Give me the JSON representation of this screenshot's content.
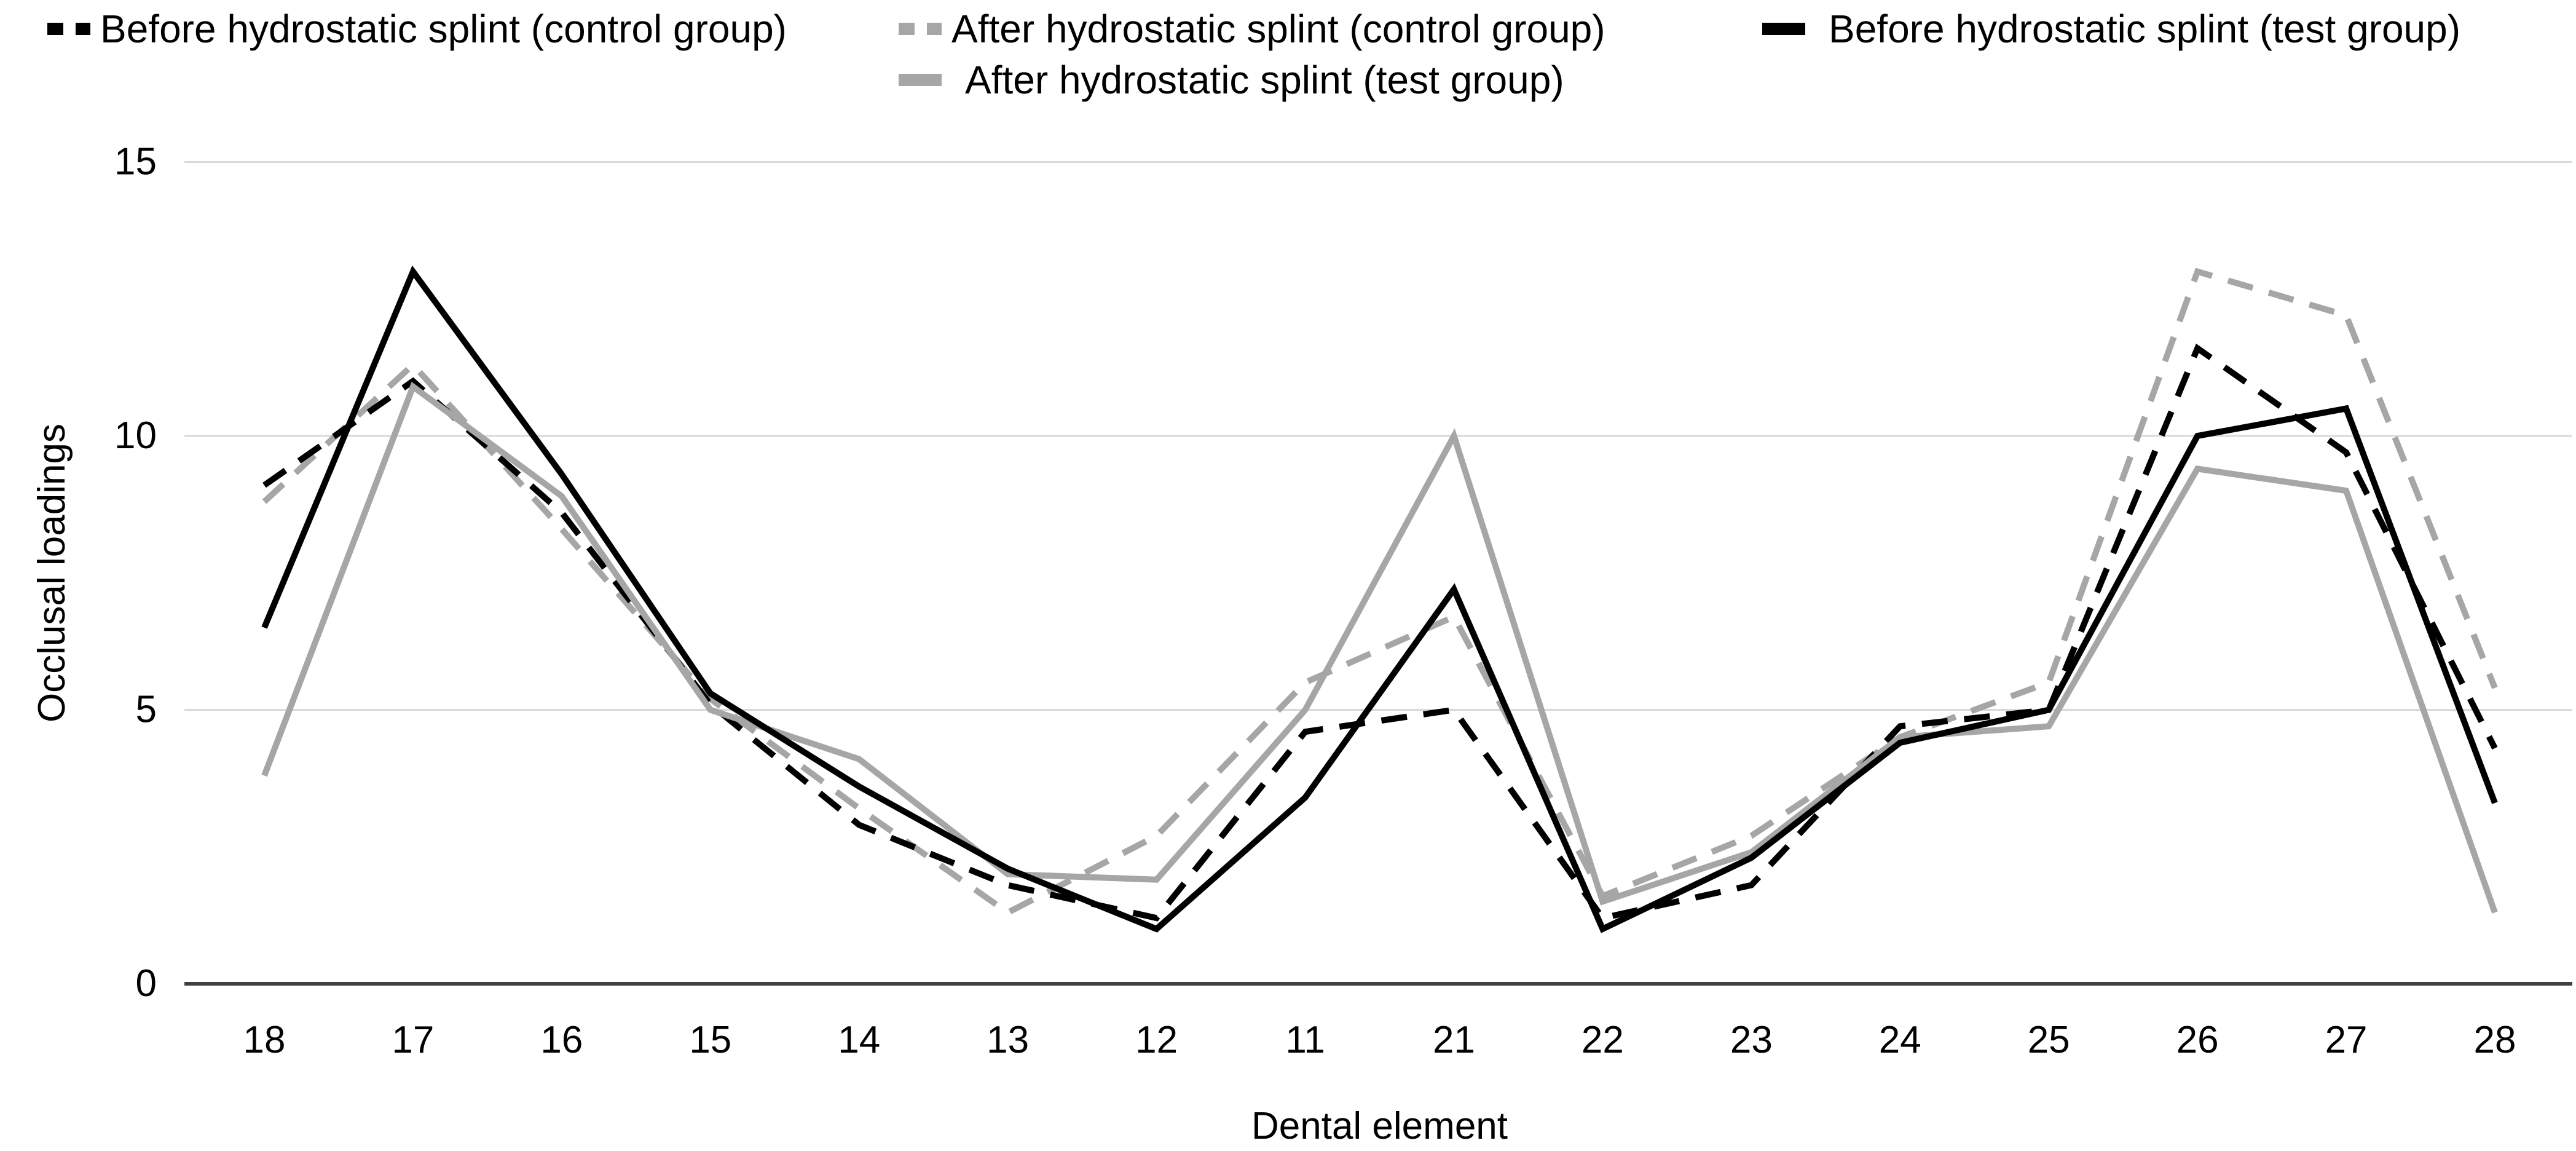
{
  "chart_data": {
    "type": "line",
    "title": "",
    "xlabel": "Dental element",
    "ylabel": "Occlusal loadings",
    "ylim": [
      0,
      15
    ],
    "yticks": [
      0,
      5,
      10,
      15
    ],
    "grid": true,
    "legend_position": "top",
    "categories": [
      "18",
      "17",
      "16",
      "15",
      "14",
      "13",
      "12",
      "11",
      "21",
      "22",
      "23",
      "24",
      "25",
      "26",
      "27",
      "28"
    ],
    "series": [
      {
        "name": "Before hydrostatic splint (control group)",
        "style": "dashed",
        "color": "#000000",
        "values": [
          9.1,
          11.0,
          8.6,
          5.1,
          2.9,
          1.8,
          1.2,
          4.6,
          5.0,
          1.2,
          1.8,
          4.7,
          5.0,
          11.6,
          9.7,
          4.3
        ]
      },
      {
        "name": "After hydrostatic splint (control group)",
        "style": "dashed",
        "color": "#a6a6a6",
        "values": [
          8.8,
          11.3,
          8.3,
          5.2,
          3.2,
          1.3,
          2.7,
          5.5,
          6.7,
          1.6,
          2.7,
          4.5,
          5.5,
          13.0,
          12.2,
          5.4
        ]
      },
      {
        "name": "After hydrostatic splint (test group)",
        "style": "solid",
        "color": "#a6a6a6",
        "values": [
          3.8,
          10.9,
          8.9,
          5.0,
          4.1,
          2.0,
          1.9,
          5.0,
          10.0,
          1.5,
          2.4,
          4.5,
          4.7,
          9.4,
          9.0,
          1.3
        ]
      },
      {
        "name": "Before hydrostatic splint (test group)",
        "style": "solid",
        "color": "#000000",
        "values": [
          6.5,
          13.0,
          9.3,
          5.3,
          3.6,
          2.1,
          1.0,
          3.4,
          7.2,
          1.0,
          2.3,
          4.4,
          5.0,
          10.0,
          10.5,
          3.3
        ]
      }
    ],
    "colors": {
      "gridline": "#d9d9d9",
      "axis_line": "#404040",
      "text": "#000000"
    }
  }
}
